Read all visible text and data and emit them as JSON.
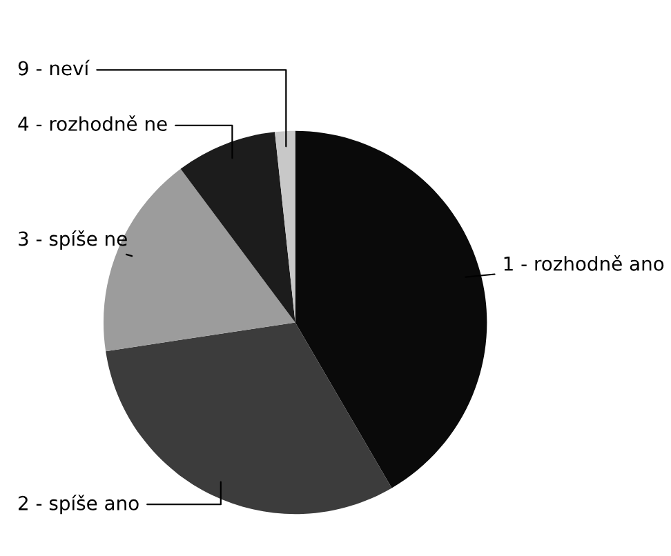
{
  "chart_data": {
    "type": "pie",
    "categories": [
      "1 - rozhodně ano",
      "2 - spíše ano",
      "3 - spíše ne",
      "4 - rozhodně ne",
      "9 - neví"
    ],
    "values": [
      41.6,
      31,
      17.2,
      8.5,
      1.7
    ],
    "colors": [
      "#0a0a0a",
      "#3c3c3c",
      "#9c9c9c",
      "#1c1c1c",
      "#c8c8c8"
    ],
    "legend": false
  }
}
